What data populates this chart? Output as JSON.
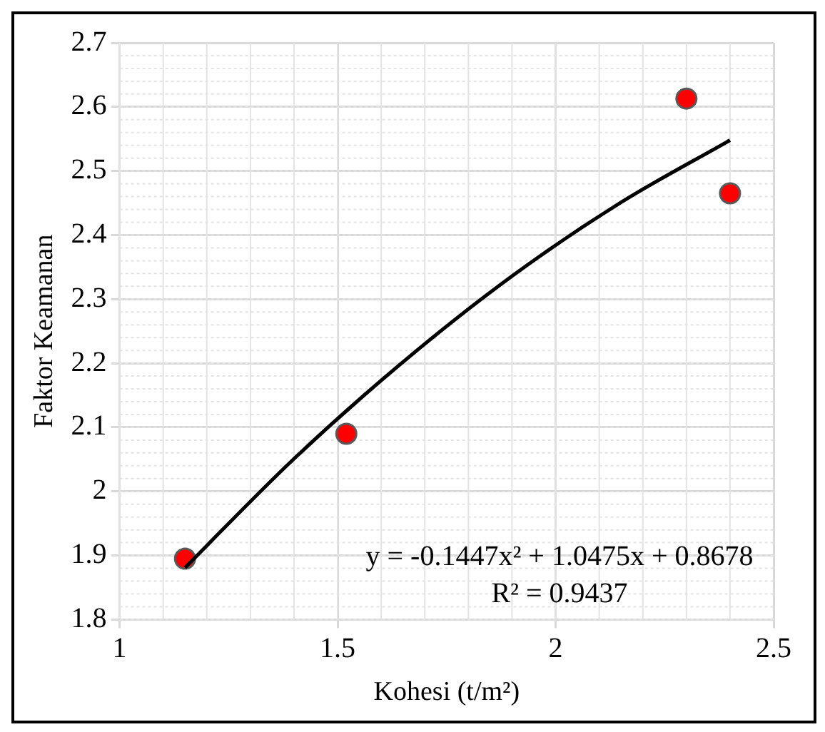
{
  "chart_data": {
    "type": "scatter",
    "xlabel": "Kohesi (t/m²)",
    "ylabel": "Faktor Keamanan",
    "series": [
      {
        "type": "scatter",
        "color": "#ff0000",
        "x": [
          1.15,
          1.52,
          2.3,
          2.4
        ],
        "values": [
          1.895,
          2.09,
          2.613,
          2.465
        ]
      },
      {
        "type": "line",
        "color": "#000000",
        "x": [
          1.15,
          1.4,
          1.65,
          1.9,
          2.15,
          2.4
        ],
        "values": [
          1.881,
          2.051,
          2.202,
          2.336,
          2.451,
          2.548
        ],
        "marker": "none"
      }
    ],
    "xlim": [
      1,
      2.5
    ],
    "xticks": [
      1,
      1.5,
      2,
      2.5
    ],
    "ylim": [
      1.8,
      2.7
    ],
    "yticks": [
      1.8,
      1.9,
      2,
      2.1,
      2.2,
      2.3,
      2.4,
      2.5,
      2.6,
      2.7
    ],
    "grid": true,
    "legend": false,
    "marker": "circle",
    "annotations": [
      "y = -0.1447x² + 1.0475x + 0.8678",
      "R² = 0.9437"
    ]
  }
}
